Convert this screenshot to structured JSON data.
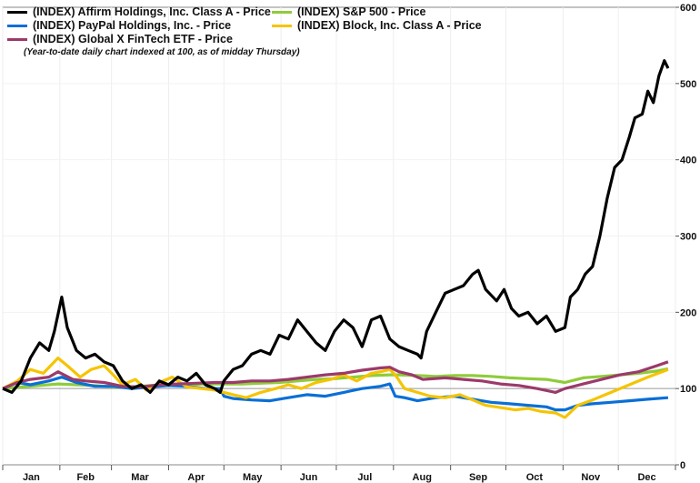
{
  "chart_data": {
    "type": "line",
    "title": "",
    "note": "(Year-to-date daily chart indexed at 100, as of midday Thursday)",
    "xlabel": "",
    "ylabel": "",
    "x_unit": "day of year",
    "xlim": [
      0,
      365
    ],
    "ylim": [
      0,
      600
    ],
    "yticks": [
      0,
      100,
      200,
      300,
      400,
      500,
      600
    ],
    "ytick_labels": [
      "0",
      "100",
      "200",
      "300",
      "400",
      "500",
      "600"
    ],
    "xtick_labels": [
      "Jan",
      "Feb",
      "Mar",
      "Apr",
      "May",
      "Jun",
      "Jul",
      "Aug",
      "Sep",
      "Oct",
      "Nov",
      "Dec"
    ],
    "reference_line": 100,
    "legend_position": "top-left",
    "series": [
      {
        "name": "(INDEX) Affirm Holdings, Inc. Class A - Price",
        "color": "#000000",
        "x": [
          0,
          5,
          10,
          15,
          20,
          25,
          28,
          32,
          35,
          40,
          45,
          50,
          55,
          60,
          65,
          70,
          75,
          80,
          85,
          90,
          95,
          100,
          105,
          110,
          115,
          118,
          120,
          125,
          130,
          135,
          140,
          145,
          150,
          155,
          160,
          165,
          170,
          175,
          180,
          185,
          190,
          195,
          200,
          205,
          210,
          215,
          220,
          225,
          227,
          230,
          235,
          240,
          245,
          250,
          255,
          258,
          262,
          268,
          272,
          276,
          280,
          285,
          290,
          295,
          300,
          305,
          308,
          312,
          316,
          320,
          324,
          328,
          332,
          336,
          340,
          343,
          347,
          350,
          353,
          356,
          359,
          361
        ],
        "y": [
          100,
          95,
          110,
          140,
          160,
          150,
          175,
          220,
          180,
          150,
          140,
          145,
          135,
          130,
          110,
          100,
          105,
          95,
          110,
          105,
          115,
          110,
          120,
          105,
          100,
          95,
          110,
          125,
          130,
          145,
          150,
          145,
          170,
          165,
          190,
          175,
          160,
          150,
          175,
          190,
          180,
          155,
          190,
          195,
          165,
          155,
          150,
          145,
          140,
          175,
          200,
          225,
          230,
          235,
          250,
          255,
          230,
          215,
          230,
          205,
          195,
          200,
          185,
          195,
          175,
          180,
          220,
          230,
          250,
          260,
          300,
          350,
          390,
          400,
          430,
          455,
          460,
          490,
          475,
          510,
          530,
          520
        ]
      },
      {
        "name": "(INDEX) PayPal Holdings, Inc. - Price",
        "color": "#0a6fd6",
        "x": [
          0,
          8,
          15,
          25,
          32,
          40,
          50,
          60,
          70,
          80,
          90,
          100,
          110,
          118,
          120,
          125,
          135,
          145,
          155,
          165,
          175,
          185,
          195,
          205,
          210,
          213,
          218,
          225,
          235,
          245,
          255,
          265,
          275,
          285,
          295,
          300,
          305,
          312,
          320,
          330,
          340,
          350,
          361
        ],
        "y": [
          100,
          108,
          105,
          110,
          115,
          108,
          103,
          103,
          100,
          102,
          104,
          103,
          100,
          100,
          90,
          87,
          85,
          84,
          88,
          92,
          90,
          95,
          100,
          103,
          106,
          90,
          88,
          84,
          88,
          90,
          86,
          82,
          80,
          78,
          76,
          72,
          72,
          78,
          80,
          82,
          84,
          86,
          88
        ]
      },
      {
        "name": "(INDEX) Global X FinTech ETF - Price",
        "color": "#9b3a6b",
        "x": [
          0,
          8,
          15,
          25,
          30,
          38,
          45,
          55,
          65,
          75,
          85,
          95,
          105,
          115,
          125,
          135,
          145,
          155,
          165,
          175,
          185,
          195,
          205,
          210,
          215,
          222,
          228,
          240,
          250,
          260,
          270,
          280,
          290,
          300,
          305,
          315,
          325,
          335,
          345,
          355,
          361
        ],
        "y": [
          100,
          108,
          112,
          115,
          122,
          112,
          110,
          108,
          103,
          102,
          105,
          106,
          107,
          108,
          108,
          110,
          110,
          112,
          115,
          118,
          120,
          124,
          127,
          128,
          122,
          118,
          112,
          114,
          112,
          110,
          106,
          104,
          100,
          95,
          100,
          106,
          112,
          118,
          122,
          130,
          135
        ]
      },
      {
        "name": "(INDEX) S&P 500 - Price",
        "color": "#8fcc3a",
        "x": [
          0,
          10,
          20,
          30,
          40,
          50,
          60,
          70,
          80,
          90,
          100,
          110,
          120,
          130,
          140,
          150,
          160,
          170,
          180,
          190,
          200,
          210,
          215,
          225,
          235,
          245,
          255,
          265,
          275,
          285,
          295,
          305,
          315,
          325,
          335,
          345,
          355,
          361
        ],
        "y": [
          100,
          102,
          104,
          106,
          105,
          104,
          102,
          102,
          104,
          105,
          105,
          106,
          106,
          106,
          107,
          108,
          110,
          112,
          113,
          115,
          117,
          118,
          118,
          117,
          116,
          117,
          117,
          116,
          114,
          113,
          112,
          108,
          114,
          116,
          118,
          120,
          123,
          126
        ]
      },
      {
        "name": "(INDEX) Block, Inc. Class A - Price",
        "color": "#f5c400",
        "x": [
          0,
          8,
          15,
          22,
          30,
          35,
          42,
          48,
          55,
          60,
          65,
          72,
          78,
          85,
          92,
          100,
          108,
          115,
          120,
          125,
          132,
          140,
          148,
          155,
          162,
          170,
          178,
          185,
          192,
          200,
          205,
          210,
          213,
          218,
          225,
          232,
          240,
          248,
          255,
          262,
          270,
          278,
          285,
          292,
          300,
          305,
          312,
          320,
          330,
          340,
          350,
          361
        ],
        "y": [
          100,
          110,
          125,
          120,
          140,
          130,
          115,
          125,
          130,
          118,
          105,
          112,
          98,
          108,
          115,
          102,
          100,
          98,
          95,
          92,
          88,
          95,
          100,
          105,
          100,
          108,
          112,
          118,
          110,
          120,
          122,
          125,
          118,
          100,
          95,
          90,
          88,
          92,
          85,
          78,
          75,
          72,
          74,
          70,
          68,
          62,
          78,
          85,
          95,
          105,
          115,
          125
        ]
      }
    ]
  }
}
